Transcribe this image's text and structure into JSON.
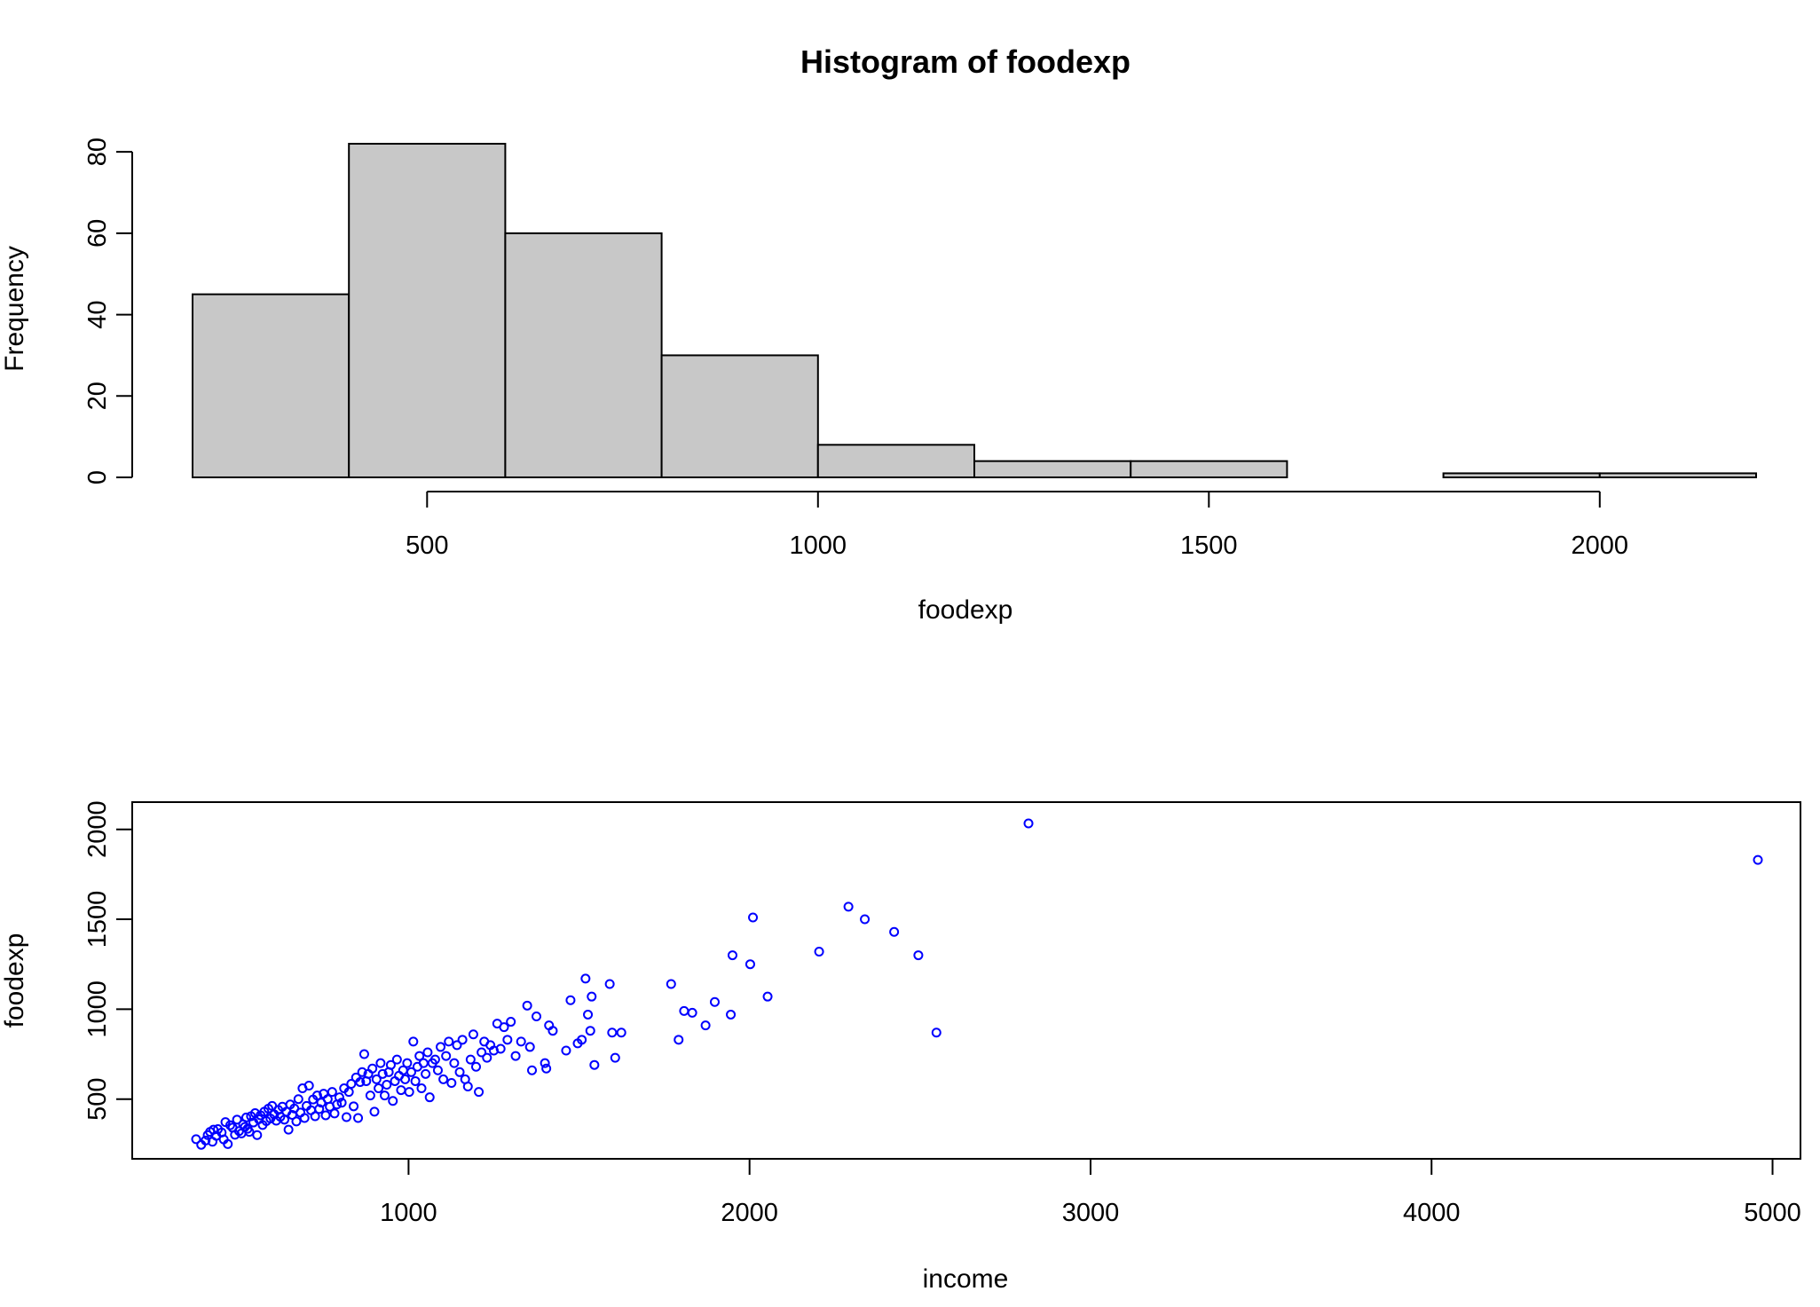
{
  "chart_data": [
    {
      "type": "bar",
      "title": "Histogram of foodexp",
      "xlabel": "foodexp",
      "ylabel": "Frequency",
      "bins": [
        {
          "from": 200,
          "to": 400,
          "count": 45
        },
        {
          "from": 400,
          "to": 600,
          "count": 82
        },
        {
          "from": 600,
          "to": 800,
          "count": 60
        },
        {
          "from": 800,
          "to": 1000,
          "count": 30
        },
        {
          "from": 1000,
          "to": 1200,
          "count": 8
        },
        {
          "from": 1200,
          "to": 1400,
          "count": 4
        },
        {
          "from": 1400,
          "to": 1600,
          "count": 4
        },
        {
          "from": 1600,
          "to": 1800,
          "count": 0
        },
        {
          "from": 1800,
          "to": 2000,
          "count": 1
        },
        {
          "from": 2000,
          "to": 2200,
          "count": 1
        }
      ],
      "xticks": [
        500,
        1000,
        1500,
        2000
      ],
      "yticks": [
        0,
        20,
        40,
        60,
        80
      ],
      "xlim": [
        200,
        2200
      ],
      "ylim": [
        0,
        82
      ],
      "grid": false,
      "colors": {
        "bar_fill": "#c8c8c8",
        "bar_edge": "#000000"
      }
    },
    {
      "type": "scatter",
      "title": "",
      "xlabel": "income",
      "ylabel": "foodexp",
      "xticks": [
        1000,
        2000,
        3000,
        4000,
        5000
      ],
      "yticks": [
        500,
        1000,
        1500,
        2000
      ],
      "xlim": [
        377,
        4957
      ],
      "ylim": [
        242,
        2033
      ],
      "grid": false,
      "marker": "open-circle",
      "colors": {
        "point": "#0000ff"
      },
      "points": [
        [
          377,
          277
        ],
        [
          392,
          246
        ],
        [
          405,
          270
        ],
        [
          411,
          300
        ],
        [
          418,
          318
        ],
        [
          425,
          263
        ],
        [
          428,
          330
        ],
        [
          436,
          296
        ],
        [
          441,
          333
        ],
        [
          452,
          314
        ],
        [
          458,
          276
        ],
        [
          463,
          372
        ],
        [
          470,
          250
        ],
        [
          477,
          355
        ],
        [
          484,
          341
        ],
        [
          491,
          302
        ],
        [
          497,
          386
        ],
        [
          503,
          322
        ],
        [
          510,
          309
        ],
        [
          515,
          360
        ],
        [
          520,
          345
        ],
        [
          524,
          398
        ],
        [
          528,
          335
        ],
        [
          533,
          318
        ],
        [
          538,
          405
        ],
        [
          545,
          370
        ],
        [
          550,
          422
        ],
        [
          556,
          300
        ],
        [
          561,
          388
        ],
        [
          566,
          410
        ],
        [
          572,
          356
        ],
        [
          577,
          430
        ],
        [
          583,
          378
        ],
        [
          589,
          447
        ],
        [
          595,
          392
        ],
        [
          600,
          462
        ],
        [
          606,
          415
        ],
        [
          612,
          380
        ],
        [
          618,
          440
        ],
        [
          624,
          402
        ],
        [
          630,
          458
        ],
        [
          636,
          386
        ],
        [
          642,
          430
        ],
        [
          648,
          330
        ],
        [
          653,
          470
        ],
        [
          659,
          412
        ],
        [
          665,
          448
        ],
        [
          671,
          376
        ],
        [
          677,
          500
        ],
        [
          683,
          425
        ],
        [
          689,
          560
        ],
        [
          695,
          395
        ],
        [
          701,
          462
        ],
        [
          708,
          575
        ],
        [
          714,
          438
        ],
        [
          720,
          498
        ],
        [
          726,
          405
        ],
        [
          732,
          520
        ],
        [
          738,
          445
        ],
        [
          744,
          480
        ],
        [
          751,
          530
        ],
        [
          757,
          410
        ],
        [
          763,
          500
        ],
        [
          769,
          458
        ],
        [
          776,
          540
        ],
        [
          783,
          420
        ],
        [
          790,
          470
        ],
        [
          797,
          510
        ],
        [
          804,
          480
        ],
        [
          811,
          560
        ],
        [
          818,
          400
        ],
        [
          825,
          540
        ],
        [
          832,
          585
        ],
        [
          839,
          460
        ],
        [
          846,
          620
        ],
        [
          852,
          395
        ],
        [
          858,
          595
        ],
        [
          864,
          650
        ],
        [
          870,
          750
        ],
        [
          876,
          600
        ],
        [
          882,
          640
        ],
        [
          888,
          520
        ],
        [
          894,
          670
        ],
        [
          900,
          430
        ],
        [
          906,
          610
        ],
        [
          912,
          560
        ],
        [
          918,
          700
        ],
        [
          924,
          640
        ],
        [
          930,
          520
        ],
        [
          936,
          580
        ],
        [
          942,
          650
        ],
        [
          948,
          690
        ],
        [
          954,
          490
        ],
        [
          960,
          600
        ],
        [
          966,
          720
        ],
        [
          972,
          630
        ],
        [
          978,
          550
        ],
        [
          984,
          660
        ],
        [
          990,
          610
        ],
        [
          996,
          700
        ],
        [
          1002,
          540
        ],
        [
          1008,
          650
        ],
        [
          1014,
          820
        ],
        [
          1020,
          600
        ],
        [
          1026,
          680
        ],
        [
          1032,
          740
        ],
        [
          1038,
          560
        ],
        [
          1044,
          700
        ],
        [
          1050,
          640
        ],
        [
          1056,
          760
        ],
        [
          1062,
          510
        ],
        [
          1070,
          700
        ],
        [
          1078,
          720
        ],
        [
          1086,
          660
        ],
        [
          1094,
          790
        ],
        [
          1102,
          610
        ],
        [
          1110,
          740
        ],
        [
          1118,
          820
        ],
        [
          1126,
          590
        ],
        [
          1134,
          700
        ],
        [
          1142,
          800
        ],
        [
          1150,
          650
        ],
        [
          1158,
          830
        ],
        [
          1166,
          610
        ],
        [
          1174,
          570
        ],
        [
          1182,
          720
        ],
        [
          1190,
          860
        ],
        [
          1198,
          680
        ],
        [
          1206,
          540
        ],
        [
          1214,
          760
        ],
        [
          1222,
          820
        ],
        [
          1230,
          730
        ],
        [
          1240,
          800
        ],
        [
          1250,
          770
        ],
        [
          1260,
          920
        ],
        [
          1270,
          780
        ],
        [
          1280,
          900
        ],
        [
          1290,
          830
        ],
        [
          1300,
          930
        ],
        [
          1314,
          740
        ],
        [
          1330,
          820
        ],
        [
          1348,
          1020
        ],
        [
          1356,
          790
        ],
        [
          1362,
          660
        ],
        [
          1375,
          960
        ],
        [
          1400,
          700
        ],
        [
          1404,
          670
        ],
        [
          1412,
          910
        ],
        [
          1423,
          880
        ],
        [
          1462,
          770
        ],
        [
          1475,
          1050
        ],
        [
          1496,
          810
        ],
        [
          1508,
          830
        ],
        [
          1519,
          1170
        ],
        [
          1526,
          970
        ],
        [
          1533,
          880
        ],
        [
          1537,
          1070
        ],
        [
          1545,
          690
        ],
        [
          1590,
          1140
        ],
        [
          1597,
          870
        ],
        [
          1606,
          730
        ],
        [
          1624,
          870
        ],
        [
          1770,
          1140
        ],
        [
          1792,
          830
        ],
        [
          1808,
          990
        ],
        [
          1832,
          980
        ],
        [
          1871,
          910
        ],
        [
          1898,
          1040
        ],
        [
          1945,
          970
        ],
        [
          1950,
          1300
        ],
        [
          2002,
          1250
        ],
        [
          2010,
          1510
        ],
        [
          2053,
          1070
        ],
        [
          2204,
          1320
        ],
        [
          2290,
          1570
        ],
        [
          2338,
          1500
        ],
        [
          2424,
          1430
        ],
        [
          2495,
          1300
        ],
        [
          2548,
          870
        ],
        [
          2818,
          2033
        ],
        [
          4957,
          1830
        ]
      ]
    }
  ]
}
